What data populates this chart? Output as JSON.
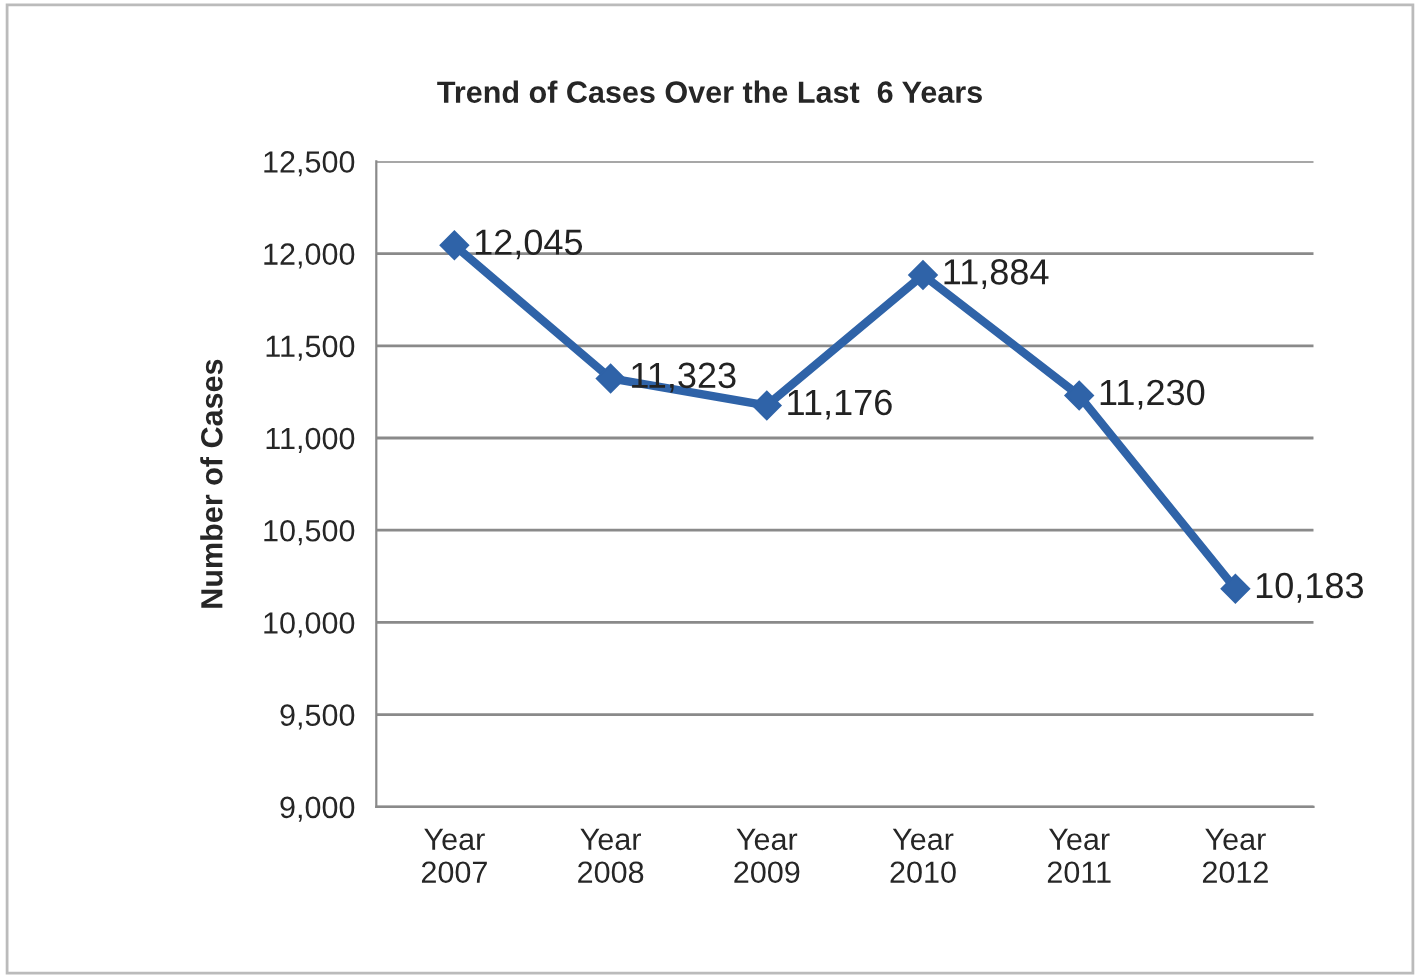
{
  "chart_data": {
    "type": "line",
    "title": "Trend of Cases Over the Last  6 Years",
    "ylabel": "Number of Cases",
    "categories": [
      "Year\n2007",
      "Year\n2008",
      "Year\n2009",
      "Year\n2010",
      "Year\n2011",
      "Year\n2012"
    ],
    "series": [
      {
        "color": "#2f63a8",
        "values": [
          12045,
          11323,
          11176,
          11884,
          11230,
          10183
        ],
        "value_labels": [
          "12,045",
          "11,323",
          "11,176",
          "11,884",
          "11,230",
          "10,183"
        ]
      }
    ],
    "ylim": [
      9000,
      12500
    ],
    "yticks": [
      {
        "value": 9000,
        "label": "9,000"
      },
      {
        "value": 9500,
        "label": "9,500"
      },
      {
        "value": 10000,
        "label": "10,000"
      },
      {
        "value": 10500,
        "label": "10,500"
      },
      {
        "value": 11000,
        "label": "11,000"
      },
      {
        "value": 11500,
        "label": "11,500"
      },
      {
        "value": 12000,
        "label": "12,000"
      },
      {
        "value": 12500,
        "label": "12,500"
      }
    ],
    "grid": "y",
    "marker": "diamond",
    "line_style": "solid"
  }
}
